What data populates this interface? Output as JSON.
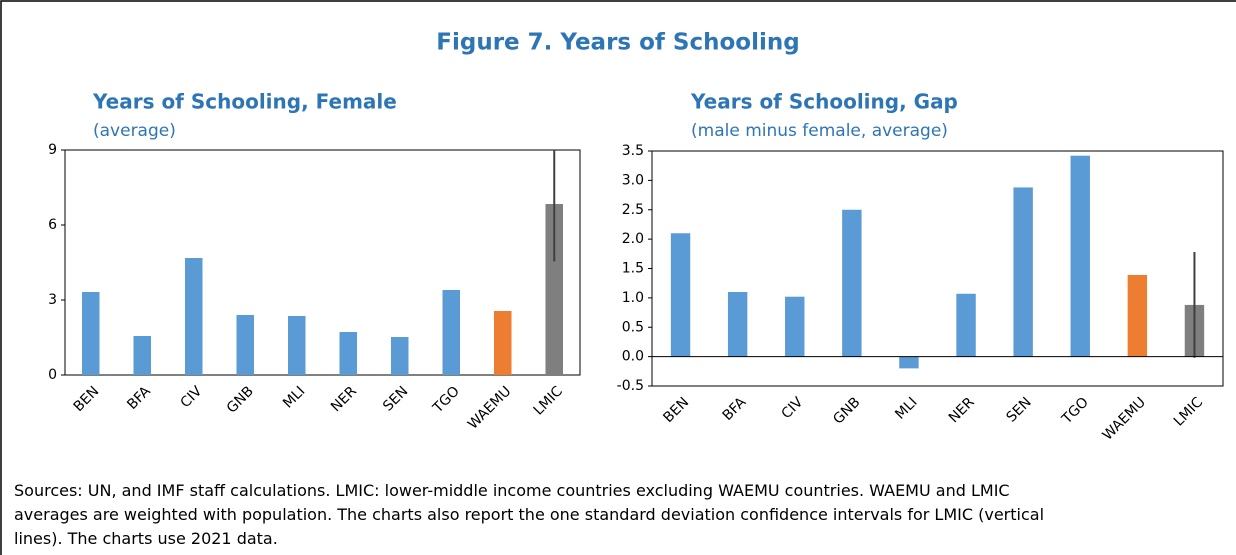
{
  "title": "Figure 7. Years of Schooling",
  "note": [
    "Sources: UN, and IMF staff calculations. LMIC: lower-middle income countries excluding WAEMU countries. WAEMU and LMIC",
    "averages are weighted with population. The charts also report the one standard deviation confidence intervals for LMIC (vertical",
    "lines). The charts use 2021 data."
  ],
  "chart_data": [
    {
      "type": "bar",
      "title": "Years of Schooling, Female",
      "subtitle": "(average)",
      "categories": [
        "BEN",
        "BFA",
        "CIV",
        "GNB",
        "MLI",
        "NER",
        "SEN",
        "TGO",
        "WAEMU",
        "LMIC"
      ],
      "values": [
        3.32,
        1.56,
        4.68,
        2.4,
        2.36,
        1.72,
        1.52,
        3.4,
        2.56,
        6.84
      ],
      "colors": [
        "#5b9bd5",
        "#5b9bd5",
        "#5b9bd5",
        "#5b9bd5",
        "#5b9bd5",
        "#5b9bd5",
        "#5b9bd5",
        "#5b9bd5",
        "#ed7d31",
        "#7f7f7f"
      ],
      "errors": [
        null,
        null,
        null,
        null,
        null,
        null,
        null,
        null,
        null,
        2.3
      ],
      "ylim": [
        0,
        9
      ],
      "yticks": [
        0,
        3,
        6,
        9
      ]
    },
    {
      "type": "bar",
      "title": "Years of Schooling, Gap",
      "subtitle": "(male minus female, average)",
      "categories": [
        "BEN",
        "BFA",
        "CIV",
        "GNB",
        "MLI",
        "NER",
        "SEN",
        "TGO",
        "WAEMU",
        "LMIC"
      ],
      "values": [
        2.1,
        1.1,
        1.02,
        2.5,
        -0.2,
        1.07,
        2.88,
        3.42,
        1.39,
        0.88
      ],
      "colors": [
        "#5b9bd5",
        "#5b9bd5",
        "#5b9bd5",
        "#5b9bd5",
        "#5b9bd5",
        "#5b9bd5",
        "#5b9bd5",
        "#5b9bd5",
        "#ed7d31",
        "#7f7f7f"
      ],
      "errors": [
        null,
        null,
        null,
        null,
        null,
        null,
        null,
        null,
        null,
        0.9
      ],
      "ylim": [
        -0.5,
        3.5
      ],
      "yticks": [
        -0.5,
        {
          "value": 0,
          "label": "0.0"
        },
        0.5,
        {
          "value": 1,
          "label": "1.0"
        },
        1.5,
        {
          "value": 2,
          "label": "2.0"
        },
        2.5,
        {
          "value": 3,
          "label": "3.0"
        },
        3.5
      ]
    }
  ]
}
